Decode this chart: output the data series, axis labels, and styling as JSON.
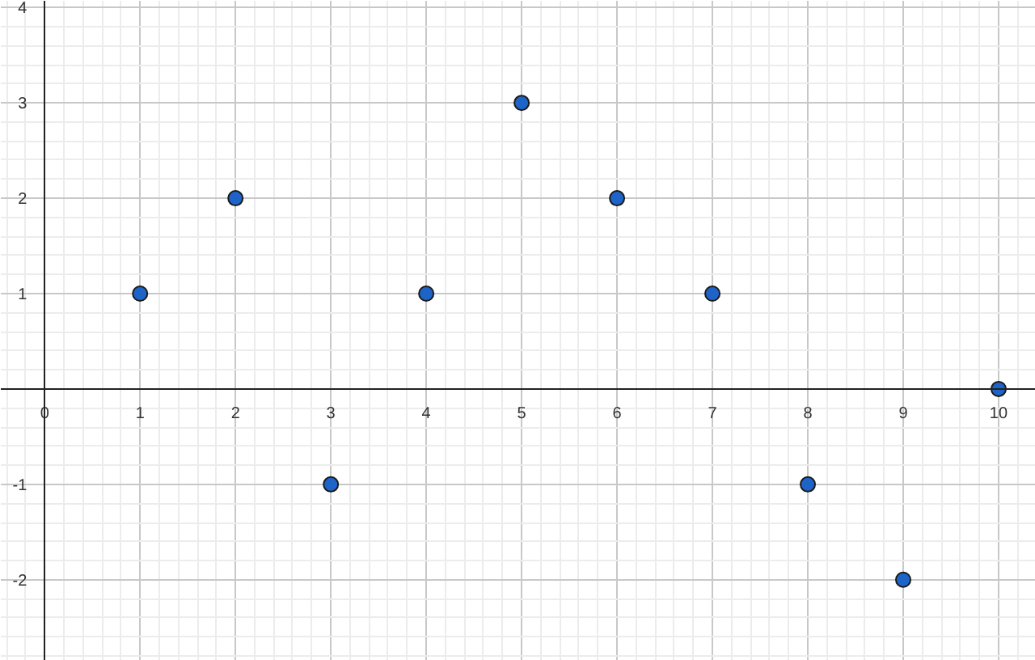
{
  "chart_data": {
    "type": "scatter",
    "x": [
      1,
      2,
      3,
      4,
      5,
      6,
      7,
      8,
      9,
      10
    ],
    "series": [
      {
        "color": "#1e64c8",
        "values": [
          1,
          2,
          -1,
          1,
          3,
          2,
          1,
          -1,
          -2,
          0
        ]
      }
    ],
    "xlim": [
      -0.46,
      10.39
    ],
    "ylim": [
      -2.85,
      4.07
    ],
    "xticks": [
      0,
      1,
      2,
      3,
      4,
      5,
      6,
      7,
      8,
      9,
      10
    ],
    "yticks": [
      -2,
      -1,
      {
        "value": 0,
        "label": null
      },
      1,
      2,
      3,
      4
    ],
    "grid": true,
    "marker": "circle"
  }
}
